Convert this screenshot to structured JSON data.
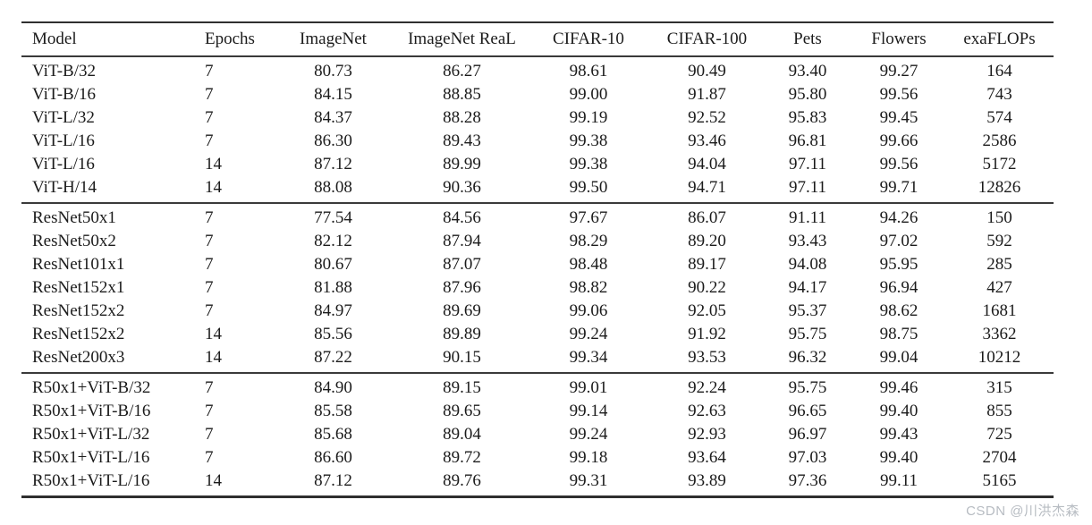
{
  "page": {
    "background_color": "#ffffff",
    "text_color": "#1b1b1b",
    "rule_color": "#2f2f2f"
  },
  "watermark": {
    "text": "CSDN @川洪杰森",
    "color": "#b7bcc2"
  },
  "table": {
    "columns": [
      {
        "key": "model",
        "label": "Model",
        "align": "left"
      },
      {
        "key": "epochs",
        "label": "Epochs",
        "align": "left"
      },
      {
        "key": "imagenet",
        "label": "ImageNet",
        "align": "center"
      },
      {
        "key": "imagenet-real",
        "label": "ImageNet ReaL",
        "align": "center"
      },
      {
        "key": "cifar-10",
        "label": "CIFAR-10",
        "align": "center"
      },
      {
        "key": "cifar-100",
        "label": "CIFAR-100",
        "align": "center"
      },
      {
        "key": "pets",
        "label": "Pets",
        "align": "center"
      },
      {
        "key": "flowers",
        "label": "Flowers",
        "align": "center"
      },
      {
        "key": "exaflops",
        "label": "exaFLOPs",
        "align": "center"
      }
    ],
    "sections": [
      {
        "name": "vit",
        "rows": [
          [
            "ViT-B/32",
            "7",
            "80.73",
            "86.27",
            "98.61",
            "90.49",
            "93.40",
            "99.27",
            "164"
          ],
          [
            "ViT-B/16",
            "7",
            "84.15",
            "88.85",
            "99.00",
            "91.87",
            "95.80",
            "99.56",
            "743"
          ],
          [
            "ViT-L/32",
            "7",
            "84.37",
            "88.28",
            "99.19",
            "92.52",
            "95.83",
            "99.45",
            "574"
          ],
          [
            "ViT-L/16",
            "7",
            "86.30",
            "89.43",
            "99.38",
            "93.46",
            "96.81",
            "99.66",
            "2586"
          ],
          [
            "ViT-L/16",
            "14",
            "87.12",
            "89.99",
            "99.38",
            "94.04",
            "97.11",
            "99.56",
            "5172"
          ],
          [
            "ViT-H/14",
            "14",
            "88.08",
            "90.36",
            "99.50",
            "94.71",
            "97.11",
            "99.71",
            "12826"
          ]
        ]
      },
      {
        "name": "resnet",
        "rows": [
          [
            "ResNet50x1",
            "7",
            "77.54",
            "84.56",
            "97.67",
            "86.07",
            "91.11",
            "94.26",
            "150"
          ],
          [
            "ResNet50x2",
            "7",
            "82.12",
            "87.94",
            "98.29",
            "89.20",
            "93.43",
            "97.02",
            "592"
          ],
          [
            "ResNet101x1",
            "7",
            "80.67",
            "87.07",
            "98.48",
            "89.17",
            "94.08",
            "95.95",
            "285"
          ],
          [
            "ResNet152x1",
            "7",
            "81.88",
            "87.96",
            "98.82",
            "90.22",
            "94.17",
            "96.94",
            "427"
          ],
          [
            "ResNet152x2",
            "7",
            "84.97",
            "89.69",
            "99.06",
            "92.05",
            "95.37",
            "98.62",
            "1681"
          ],
          [
            "ResNet152x2",
            "14",
            "85.56",
            "89.89",
            "99.24",
            "91.92",
            "95.75",
            "98.75",
            "3362"
          ],
          [
            "ResNet200x3",
            "14",
            "87.22",
            "90.15",
            "99.34",
            "93.53",
            "96.32",
            "99.04",
            "10212"
          ]
        ]
      },
      {
        "name": "hybrid",
        "rows": [
          [
            "R50x1+ViT-B/32",
            "7",
            "84.90",
            "89.15",
            "99.01",
            "92.24",
            "95.75",
            "99.46",
            "315"
          ],
          [
            "R50x1+ViT-B/16",
            "7",
            "85.58",
            "89.65",
            "99.14",
            "92.63",
            "96.65",
            "99.40",
            "855"
          ],
          [
            "R50x1+ViT-L/32",
            "7",
            "85.68",
            "89.04",
            "99.24",
            "92.93",
            "96.97",
            "99.43",
            "725"
          ],
          [
            "R50x1+ViT-L/16",
            "7",
            "86.60",
            "89.72",
            "99.18",
            "93.64",
            "97.03",
            "99.40",
            "2704"
          ],
          [
            "R50x1+ViT-L/16",
            "14",
            "87.12",
            "89.76",
            "99.31",
            "93.89",
            "97.36",
            "99.11",
            "5165"
          ]
        ]
      }
    ]
  }
}
